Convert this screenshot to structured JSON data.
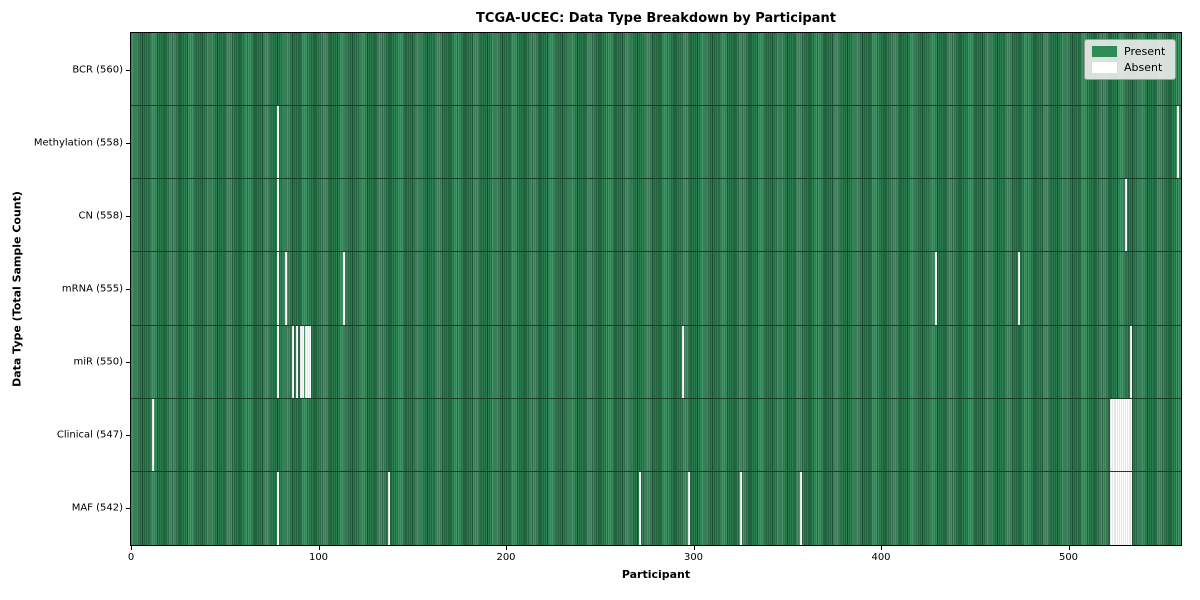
{
  "chart_data": {
    "type": "heatmap",
    "title": "TCGA-UCEC: Data Type Breakdown by Participant",
    "xlabel": "Participant",
    "ylabel": "Data Type (Total Sample Count)",
    "xlim": [
      0,
      560
    ],
    "x_ticks": [
      0,
      100,
      200,
      300,
      400,
      500
    ],
    "n_participants": 560,
    "grid": false,
    "colors": {
      "present": "#2e8b57",
      "present_edge": "#1d5134",
      "absent": "#ffffff",
      "row_divider": "#15402a"
    },
    "legend": {
      "position": "upper right",
      "items": [
        {
          "label": "Present",
          "color": "#2e8b57"
        },
        {
          "label": "Absent",
          "color": "#ffffff"
        }
      ]
    },
    "rows": [
      {
        "data_type": "BCR",
        "label": "BCR (560)",
        "present_count": 560,
        "absent_participants": []
      },
      {
        "data_type": "Methylation",
        "label": "Methylation (558)",
        "present_count": 558,
        "absent_participants": [
          78,
          558
        ]
      },
      {
        "data_type": "CN",
        "label": "CN (558)",
        "present_count": 558,
        "absent_participants": [
          78,
          530
        ]
      },
      {
        "data_type": "mRNA",
        "label": "mRNA (555)",
        "present_count": 555,
        "absent_participants": [
          78,
          82,
          113,
          429,
          473
        ]
      },
      {
        "data_type": "miR",
        "label": "miR (550)",
        "present_count": 550,
        "absent_participants": [
          78,
          86,
          88,
          90,
          91,
          93,
          94,
          95,
          294,
          533
        ]
      },
      {
        "data_type": "Clinical",
        "label": "Clinical (547)",
        "present_count": 547,
        "absent_participants": [
          11,
          522,
          523,
          524,
          525,
          526,
          527,
          528,
          529,
          530,
          531,
          532,
          533
        ]
      },
      {
        "data_type": "MAF",
        "label": "MAF (542)",
        "present_count": 542,
        "absent_participants": [
          78,
          137,
          271,
          297,
          325,
          357,
          522,
          523,
          524,
          525,
          526,
          527,
          528,
          529,
          530,
          531,
          532,
          533
        ]
      }
    ]
  }
}
